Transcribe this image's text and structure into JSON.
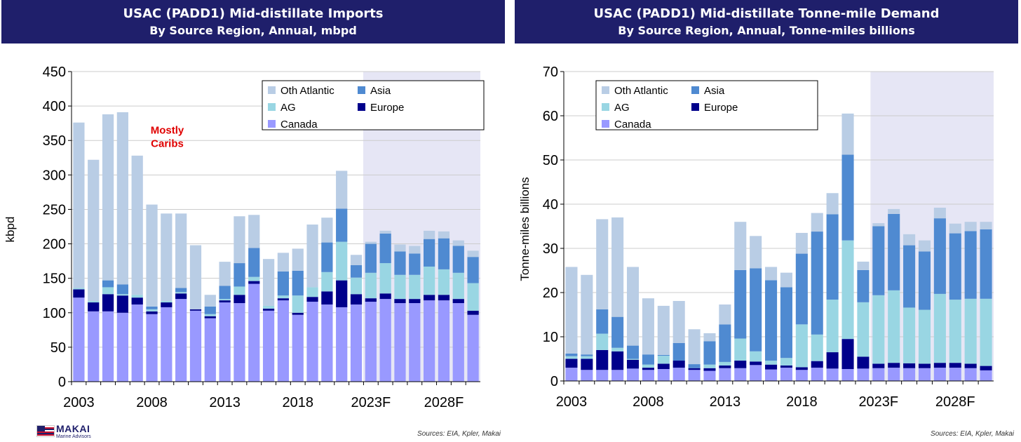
{
  "brand": {
    "name": "MAKAI",
    "tagline": "Marine Advisors"
  },
  "colors": {
    "title_bg": "#1f1f6b",
    "forecast_shade": "#e6e6f5",
    "canada": "#9999ff",
    "europe": "#00008b",
    "ag": "#99d6e3",
    "asia": "#4f8ad1",
    "oth_atlantic": "#b9cde5",
    "annotation": "#e00000"
  },
  "legend_labels": {
    "oth_atlantic": "Oth Atlantic",
    "asia": "Asia",
    "ag": "AG",
    "europe": "Europe",
    "canada": "Canada"
  },
  "chart_data": [
    {
      "type": "bar",
      "stacked": true,
      "title": "USAC (PADD1) Mid-distillate Imports",
      "subtitle": "By Source Region, Annual, mbpd",
      "ylabel": "kbpd",
      "ylim": [
        0,
        450
      ],
      "yticks": [
        0,
        50,
        100,
        150,
        200,
        250,
        300,
        350,
        400,
        450
      ],
      "x": [
        2003,
        2004,
        2005,
        2006,
        2007,
        2008,
        2009,
        2010,
        2011,
        2012,
        2013,
        2014,
        2015,
        2016,
        2017,
        2018,
        2019,
        2020,
        2021,
        2022,
        2023,
        2024,
        2025,
        2026,
        2027,
        2028,
        2029,
        2030
      ],
      "xtick_labels": [
        {
          "year": 2003,
          "label": "2003"
        },
        {
          "year": 2008,
          "label": "2008"
        },
        {
          "year": 2013,
          "label": "2013"
        },
        {
          "year": 2018,
          "label": "2018"
        },
        {
          "year": 2023,
          "label": "2023F"
        },
        {
          "year": 2028,
          "label": "2028F"
        }
      ],
      "forecast_from": 2023,
      "grid": true,
      "legend_position": "top-right",
      "annotation": {
        "lines": [
          "Mostly",
          "Caribs"
        ],
        "year": 2008,
        "y": 360
      },
      "series": [
        {
          "key": "canada",
          "name": "Canada",
          "values": [
            122,
            102,
            102,
            100,
            112,
            98,
            108,
            120,
            103,
            92,
            115,
            114,
            142,
            103,
            118,
            97,
            116,
            112,
            108,
            112,
            116,
            120,
            114,
            114,
            118,
            118,
            114,
            97
          ]
        },
        {
          "key": "europe",
          "name": "Europe",
          "values": [
            12,
            13,
            25,
            25,
            10,
            4,
            7,
            8,
            2,
            3,
            3,
            12,
            4,
            3,
            3,
            3,
            7,
            19,
            39,
            15,
            5,
            8,
            6,
            6,
            8,
            8,
            6,
            6
          ]
        },
        {
          "key": "ag",
          "name": "AG",
          "values": [
            2,
            2,
            10,
            2,
            4,
            3,
            2,
            2,
            0,
            3,
            2,
            12,
            6,
            4,
            4,
            25,
            14,
            28,
            56,
            24,
            37,
            44,
            35,
            35,
            41,
            37,
            38,
            40
          ]
        },
        {
          "key": "asia",
          "name": "Asia",
          "values": [
            0,
            0,
            10,
            14,
            0,
            4,
            0,
            6,
            0,
            11,
            19,
            34,
            42,
            0,
            35,
            36,
            0,
            43,
            48,
            18,
            42,
            43,
            34,
            31,
            40,
            45,
            39,
            38
          ]
        },
        {
          "key": "oth_atlantic",
          "name": "Oth Atlantic",
          "values": [
            240,
            205,
            241,
            250,
            202,
            148,
            127,
            108,
            93,
            17,
            35,
            68,
            48,
            68,
            27,
            32,
            91,
            36,
            55,
            15,
            3,
            4,
            10,
            11,
            12,
            10,
            8,
            9
          ]
        }
      ]
    },
    {
      "type": "bar",
      "stacked": true,
      "title": "USAC (PADD1) Mid-distillate Tonne-mile Demand",
      "subtitle": "By Source Region, Annual, Tonne-miles billions",
      "ylabel": "Tonne-miles billions",
      "ylim": [
        0,
        70
      ],
      "yticks": [
        0,
        10,
        20,
        30,
        40,
        50,
        60,
        70
      ],
      "x": [
        2003,
        2004,
        2005,
        2006,
        2007,
        2008,
        2009,
        2010,
        2011,
        2012,
        2013,
        2014,
        2015,
        2016,
        2017,
        2018,
        2019,
        2020,
        2021,
        2022,
        2023,
        2024,
        2025,
        2026,
        2027,
        2028,
        2029,
        2030
      ],
      "xtick_labels": [
        {
          "year": 2003,
          "label": "2003"
        },
        {
          "year": 2008,
          "label": "2008"
        },
        {
          "year": 2013,
          "label": "2013"
        },
        {
          "year": 2018,
          "label": "2018"
        },
        {
          "year": 2023,
          "label": "2023F"
        },
        {
          "year": 2028,
          "label": "2028F"
        }
      ],
      "forecast_from": 2023,
      "grid": true,
      "legend_position": "top-left",
      "series": [
        {
          "key": "canada",
          "name": "Canada",
          "values": [
            3.0,
            2.5,
            2.5,
            2.5,
            2.8,
            2.5,
            2.7,
            3.0,
            2.5,
            2.3,
            2.9,
            2.9,
            3.6,
            2.6,
            3.0,
            2.5,
            3.0,
            2.8,
            2.7,
            2.8,
            2.9,
            3.0,
            2.9,
            2.9,
            3.0,
            3.0,
            2.9,
            2.4
          ]
        },
        {
          "key": "europe",
          "name": "Europe",
          "values": [
            2.0,
            2.5,
            4.5,
            4.2,
            2.0,
            0.5,
            1.2,
            1.6,
            0.4,
            0.6,
            0.6,
            1.7,
            0.8,
            1.1,
            0.5,
            0.6,
            1.5,
            3.7,
            6.8,
            2.7,
            1.0,
            1.1,
            1.1,
            1.0,
            1.1,
            1.1,
            1.0,
            1.0
          ]
        },
        {
          "key": "ag",
          "name": "AG",
          "values": [
            0.6,
            0.6,
            3.7,
            0.8,
            0.2,
            0.7,
            1.8,
            0.0,
            0.0,
            0.8,
            0.8,
            5.0,
            2.3,
            0.9,
            1.7,
            9.7,
            6.0,
            11.9,
            22.3,
            12.3,
            15.5,
            16.4,
            12.6,
            12.2,
            15.6,
            14.3,
            14.7,
            15.2
          ]
        },
        {
          "key": "asia",
          "name": "Asia",
          "values": [
            0.6,
            0.4,
            5.5,
            7.0,
            3.0,
            2.3,
            0.2,
            4.0,
            0.9,
            5.3,
            8.5,
            15.5,
            18.8,
            18.2,
            16.0,
            16.0,
            23.3,
            19.3,
            19.4,
            7.3,
            15.6,
            17.3,
            14.1,
            13.2,
            17.1,
            15.0,
            15.3,
            15.7
          ]
        },
        {
          "key": "oth_atlantic",
          "name": "Oth Atlantic",
          "values": [
            19.6,
            18.0,
            20.4,
            22.5,
            17.8,
            12.7,
            11.1,
            9.5,
            7.9,
            1.8,
            4.5,
            10.9,
            7.3,
            3.0,
            3.3,
            4.7,
            4.2,
            4.8,
            9.3,
            1.9,
            0.7,
            1.1,
            2.5,
            2.5,
            2.4,
            2.2,
            2.1,
            1.7
          ]
        }
      ]
    }
  ],
  "source_text": "Sources: EIA, Kpler, Makai"
}
